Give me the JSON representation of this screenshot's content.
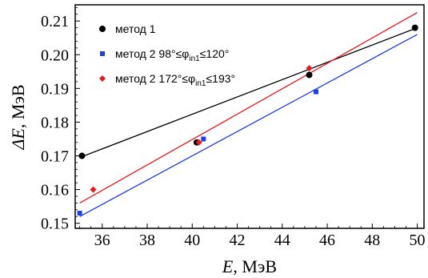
{
  "chart_data": {
    "type": "scatter",
    "xlabel": {
      "var": "E",
      "rest": ", МэВ"
    },
    "ylabel": {
      "var": "ΔE",
      "rest": ", МэВ"
    },
    "xlim": [
      34.8,
      50.3
    ],
    "ylim": [
      0.1485,
      0.2148
    ],
    "xticks": [
      36,
      38,
      40,
      42,
      44,
      46,
      48,
      50
    ],
    "yticks": [
      0.15,
      0.16,
      0.17,
      0.18,
      0.19,
      0.2,
      0.21
    ],
    "xtick_labels": [
      "36",
      "38",
      "40",
      "42",
      "44",
      "46",
      "48",
      "50"
    ],
    "ytick_labels": [
      "0.15",
      "0.16",
      "0.17",
      "0.18",
      "0.19",
      "0.20",
      "0.21"
    ],
    "series": [
      {
        "name": "метод 1",
        "color": "#000000",
        "marker": "circle",
        "points": [
          [
            35.1,
            0.17
          ],
          [
            40.2,
            0.174
          ],
          [
            45.2,
            0.194
          ],
          [
            49.9,
            0.208
          ]
        ],
        "fit": [
          [
            35.0,
            0.1695
          ],
          [
            50.0,
            0.208
          ]
        ]
      },
      {
        "name": "метод 2 98°≤φin1≤120°",
        "name_parts": [
          "метод 2 98°≤φ",
          "in1",
          "≤120°"
        ],
        "color": "#1f3fe6",
        "marker": "square",
        "points": [
          [
            35.0,
            0.153
          ],
          [
            40.5,
            0.175
          ],
          [
            45.5,
            0.189
          ]
        ],
        "fit": [
          [
            35.0,
            0.152
          ],
          [
            50.0,
            0.206
          ]
        ]
      },
      {
        "name": "метод 2 172°≤φin1≤193°",
        "name_parts": [
          "метод 2 172°≤φ",
          "in1",
          "≤193°"
        ],
        "color": "#e81818",
        "marker": "diamond",
        "points": [
          [
            35.6,
            0.16
          ],
          [
            40.3,
            0.174
          ],
          [
            45.2,
            0.196
          ]
        ],
        "fit": [
          [
            35.0,
            0.156
          ],
          [
            50.0,
            0.2125
          ]
        ]
      }
    ],
    "legend_placement": "top-left",
    "grid": false
  }
}
